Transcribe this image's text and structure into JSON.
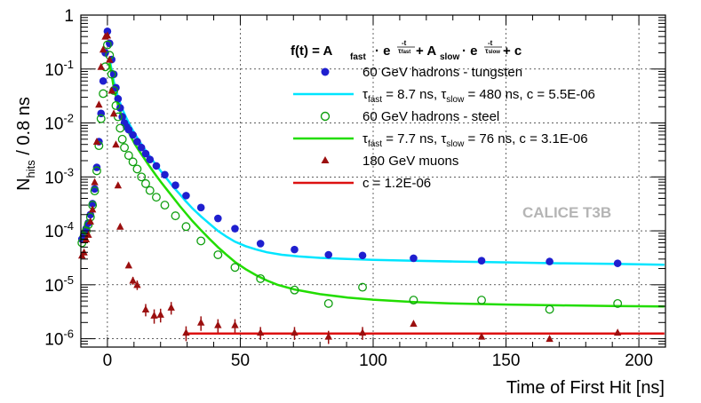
{
  "chart_data": {
    "type": "scatter",
    "y_scale": "log",
    "xlim": [
      -10,
      210
    ],
    "ylim": [
      7e-07,
      1.0
    ],
    "grid": true,
    "legend_position": "top-right",
    "xlabel": "Time of First Hit [ns]",
    "ylabel_main": "N",
    "ylabel_sub": "hits",
    "ylabel_suffix": " / 0.8 ns",
    "x_ticks": [
      0,
      50,
      100,
      150,
      200
    ],
    "x_tick_labels": [
      "0",
      "50",
      "100",
      "150",
      "200"
    ],
    "y_ticks": [
      1e-06,
      1e-05,
      0.0001,
      0.001,
      0.01,
      0.1,
      1
    ],
    "y_tick_labels": [
      {
        "base": "10",
        "exp": "-6"
      },
      {
        "base": "10",
        "exp": "-5"
      },
      {
        "base": "10",
        "exp": "-4"
      },
      {
        "base": "10",
        "exp": "-3"
      },
      {
        "base": "10",
        "exp": "-2"
      },
      {
        "base": "10",
        "exp": "-1"
      },
      {
        "base": "1",
        "exp": ""
      }
    ],
    "formula": {
      "lhs": "f(t) = A",
      "a_fast_sub": "fast",
      "a_slow": " + A",
      "a_slow_sub": "slow",
      "dot": " · e",
      "exp_num": "-t",
      "exp_den_fast": "τ",
      "exp_den_fast_sub": "fast",
      "exp_den_slow": "τ",
      "exp_den_slow_sub": "slow",
      "tail": " + c"
    },
    "watermark": "CALICE T3B",
    "legend": [
      "60 GeV hadrons - tungsten",
      "τfast = 8.7 ns, τslow = 480 ns, c = 5.5E-06",
      "60 GeV hadrons - steel",
      "τfast = 7.7 ns, τslow = 76 ns, c = 3.1E-06",
      "180 GeV muons",
      "c = 1.2E-06"
    ],
    "series": [
      {
        "name": "60 GeV hadrons - tungsten",
        "marker": "filled-circle",
        "color": "#1f1fcf",
        "x": [
          -9.6,
          -8.8,
          -8.0,
          -7.2,
          -6.4,
          -5.6,
          -4.8,
          -4.0,
          -3.2,
          -2.4,
          -1.6,
          -0.8,
          0.0,
          0.8,
          1.6,
          2.4,
          3.2,
          4.0,
          4.8,
          5.6,
          6.4,
          7.2,
          8.0,
          9.6,
          11.2,
          12.8,
          14.4,
          16.0,
          18.4,
          21.6,
          25.6,
          29.6,
          35.2,
          41.6,
          48.0,
          57.6,
          70.4,
          83.2,
          96.0,
          115.2,
          140.8,
          166.4,
          192.0
        ],
        "y": [
          7e-05,
          9e-05,
          0.00011,
          0.00014,
          0.0002,
          0.00032,
          0.0006,
          0.0015,
          0.0045,
          0.015,
          0.06,
          0.2,
          0.5,
          0.3,
          0.15,
          0.08,
          0.045,
          0.028,
          0.019,
          0.013,
          0.01,
          0.0085,
          0.0075,
          0.006,
          0.0045,
          0.0035,
          0.0027,
          0.0021,
          0.0016,
          0.0011,
          0.0007,
          0.00045,
          0.00027,
          0.00017,
          0.00011,
          5.8e-05,
          4.5e-05,
          3.6e-05,
          3.5e-05,
          3.1e-05,
          2.8e-05,
          2.7e-05,
          2.5e-05
        ]
      },
      {
        "name": "60 GeV hadrons - steel",
        "marker": "open-circle",
        "color": "#0f9f0f",
        "x": [
          -9.6,
          -8.8,
          -8.0,
          -7.2,
          -6.4,
          -5.6,
          -4.8,
          -4.0,
          -3.2,
          -2.4,
          -1.6,
          -0.8,
          0.0,
          0.8,
          1.6,
          2.4,
          3.2,
          4.0,
          4.8,
          5.6,
          6.4,
          8.0,
          9.6,
          11.2,
          12.8,
          14.4,
          16.0,
          18.4,
          21.6,
          25.6,
          29.6,
          35.2,
          41.6,
          48.0,
          57.6,
          70.4,
          83.2,
          96.0,
          115.2,
          140.8,
          166.4,
          192.0
        ],
        "y": [
          6e-05,
          8e-05,
          0.0001,
          0.00013,
          0.00018,
          0.0003,
          0.00055,
          0.0013,
          0.0038,
          0.012,
          0.035,
          0.11,
          0.28,
          0.18,
          0.08,
          0.04,
          0.021,
          0.013,
          0.008,
          0.005,
          0.0035,
          0.0025,
          0.0019,
          0.0014,
          0.001,
          0.00075,
          0.00056,
          0.00042,
          0.0003,
          0.00019,
          0.00012,
          6.5e-05,
          3.6e-05,
          2.1e-05,
          1.3e-05,
          8e-06,
          4.5e-06,
          9e-06,
          5.2e-06,
          5.2e-06,
          3.5e-06,
          4.5e-06
        ]
      },
      {
        "name": "180 GeV muons",
        "marker": "filled-triangle",
        "color": "#9b0f0f",
        "x": [
          -9.6,
          -8.8,
          -8.0,
          -7.2,
          -6.4,
          -5.6,
          -4.8,
          -4.0,
          -3.2,
          -2.4,
          -1.6,
          -0.8,
          0.0,
          0.8,
          1.6,
          2.4,
          3.2,
          4.0,
          4.8,
          8.0,
          9.6,
          11.2,
          14.4,
          17.6,
          20.0,
          24.0,
          29.6,
          35.2,
          41.6,
          48.0,
          57.6,
          70.4,
          83.2,
          96.0,
          115.2,
          140.8,
          166.4,
          192.0
        ],
        "y": [
          3.5e-05,
          4e-05,
          7e-05,
          8.5e-05,
          0.00015,
          0.00025,
          0.0008,
          0.0045,
          0.022,
          0.11,
          0.23,
          0.4,
          0.42,
          0.15,
          0.04,
          0.015,
          0.004,
          0.0007,
          0.00012,
          2.3e-05,
          1.2e-05,
          1e-05,
          3.5e-06,
          2.7e-06,
          2.8e-06,
          3.8e-06,
          1.3e-06,
          2e-06,
          1.8e-06,
          1.8e-06,
          1.3e-06,
          1.3e-06,
          1.1e-06,
          1.3e-06,
          1.9e-06,
          1.1e-06,
          1e-06,
          1.3e-06
        ],
        "yerr": [
          0,
          0,
          0,
          0,
          0,
          0,
          0,
          0,
          0,
          0,
          0,
          0,
          0,
          0,
          0,
          0,
          0,
          0,
          0,
          0,
          2e-06,
          2e-06,
          9e-07,
          8e-07,
          8e-07,
          1e-06,
          4e-07,
          6e-07,
          5e-07,
          5e-07,
          3.5e-07,
          3.5e-07,
          3e-07,
          3.5e-07,
          0,
          0,
          0,
          0
        ]
      }
    ],
    "fits": [
      {
        "name": "τfast = 8.7 ns, τslow = 480 ns, c = 5.5E-06",
        "color": "#00e5ff",
        "x": [
          0.8,
          2.4,
          4.0,
          5.6,
          7.2,
          8.8,
          10.4,
          12.0,
          13.6,
          15.2,
          16.8,
          18.4,
          20.0,
          22.4,
          24.8,
          27.2,
          29.6,
          32.0,
          35.2,
          38.4,
          41.6,
          44.8,
          48.0,
          52.0,
          56.0,
          60.0,
          65.6,
          72.0,
          80.0,
          90.4,
          100.0,
          115.2,
          130.4,
          150.4,
          170.4,
          190.4,
          209.6
        ],
        "y": [
          0.155,
          0.058,
          0.03,
          0.018,
          0.0122,
          0.0085,
          0.0062,
          0.0046,
          0.0035,
          0.0027,
          0.0021,
          0.00165,
          0.0013,
          0.00092,
          0.00065,
          0.00048,
          0.00035,
          0.00026,
          0.000185,
          0.000135,
          0.0001,
          7.8e-05,
          6.3e-05,
          5.2e-05,
          4.5e-05,
          4e-05,
          3.6e-05,
          3.35e-05,
          3.15e-05,
          3e-05,
          2.9e-05,
          2.8e-05,
          2.7e-05,
          2.6e-05,
          2.5e-05,
          2.45e-05,
          2.35e-05
        ]
      },
      {
        "name": "τfast = 7.7 ns, τslow = 76 ns, c = 3.1E-06",
        "color": "#22dd00",
        "x": [
          0.8,
          2.4,
          4.0,
          5.6,
          7.2,
          8.8,
          10.4,
          12.0,
          13.6,
          15.2,
          16.8,
          18.4,
          20.0,
          22.4,
          24.8,
          27.2,
          29.6,
          32.0,
          35.2,
          38.4,
          41.6,
          44.8,
          48.0,
          52.0,
          56.0,
          60.0,
          64.0,
          70.4,
          80.0,
          90.4,
          100.0,
          115.2,
          130.4,
          150.4,
          170.4,
          190.4,
          209.6
        ],
        "y": [
          0.13,
          0.045,
          0.021,
          0.0125,
          0.0081,
          0.0056,
          0.004,
          0.003,
          0.0023,
          0.00175,
          0.00135,
          0.00105,
          0.00082,
          0.00058,
          0.00041,
          0.00029,
          0.00021,
          0.000152,
          0.000103,
          7.1e-05,
          5e-05,
          3.6e-05,
          2.65e-05,
          1.95e-05,
          1.5e-05,
          1.2e-05,
          1e-05,
          8.2e-06,
          6.7e-06,
          5.8e-06,
          5.3e-06,
          4.8e-06,
          4.5e-06,
          4.3e-06,
          4.15e-06,
          4.05e-06,
          3.95e-06
        ]
      },
      {
        "name": "c = 1.2E-06",
        "color": "#dd1111",
        "x": [
          30.0,
          209.6
        ],
        "y": [
          1.25e-06,
          1.25e-06
        ]
      }
    ]
  }
}
